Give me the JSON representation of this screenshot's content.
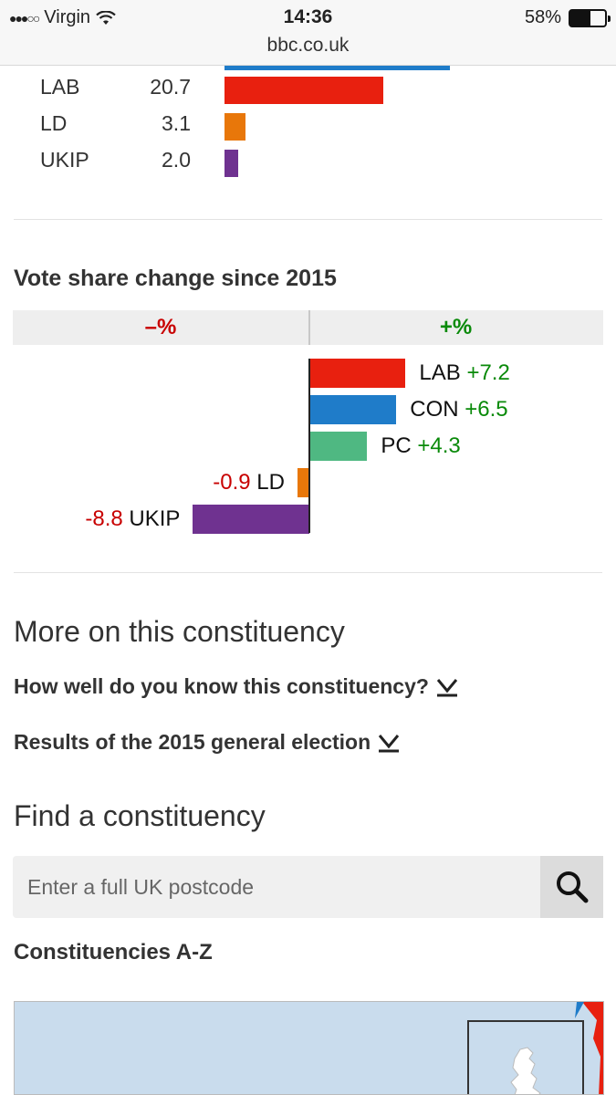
{
  "status_bar": {
    "carrier": "Virgin",
    "signal": "●●●○○",
    "time": "14:36",
    "battery_percent": "58%",
    "battery_level": 0.58,
    "url": "bbc.co.uk"
  },
  "results": [
    {
      "party": "LAB",
      "value": "20.7",
      "color": "#e8200f"
    },
    {
      "party": "LD",
      "value": "3.1",
      "color": "#e8770a"
    },
    {
      "party": "UKIP",
      "value": "2.0",
      "color": "#6f3290"
    }
  ],
  "vote_change": {
    "title": "Vote share change since 2015",
    "neg_header": "–%",
    "pos_header": "+%"
  },
  "chart_data": {
    "type": "bar",
    "title": "Vote share change since 2015",
    "categories": [
      "LAB",
      "CON",
      "PC",
      "LD",
      "UKIP"
    ],
    "values": [
      7.2,
      6.5,
      4.3,
      -0.9,
      -8.8
    ],
    "value_labels": [
      "+7.2",
      "+6.5",
      "+4.3",
      "-0.9",
      "-8.8"
    ],
    "colors": [
      "#e8200f",
      "#1f7cc9",
      "#4fb882",
      "#e8770a",
      "#6f3290"
    ]
  },
  "more": {
    "title": "More on this constituency",
    "link1": "How well do you know this constituency?",
    "link2": "Results of the 2015 general election"
  },
  "find": {
    "title": "Find a constituency",
    "placeholder": "Enter a full UK postcode",
    "az_label": "Constituencies A-Z"
  }
}
